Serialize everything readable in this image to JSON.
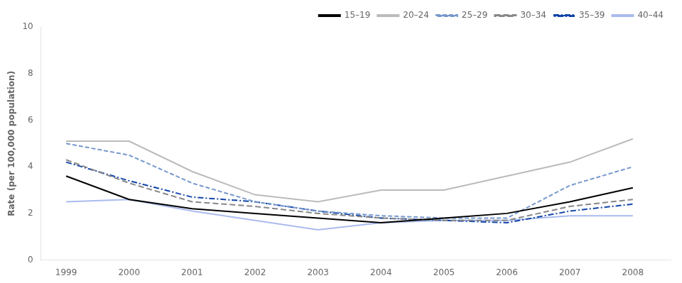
{
  "chart_data": {
    "type": "line",
    "ylabel": "Rate (per 100,000 population)",
    "x": [
      1999,
      2000,
      2001,
      2002,
      2003,
      2004,
      2005,
      2006,
      2007,
      2008
    ],
    "series": [
      {
        "name": "15–19",
        "color": "#000000",
        "line_style": "solid",
        "values": [
          3.6,
          2.6,
          2.2,
          2.0,
          1.8,
          1.6,
          1.8,
          2.0,
          2.5,
          3.1
        ]
      },
      {
        "name": "20–24",
        "color": "#bbbbbb",
        "line_style": "solid",
        "values": [
          5.1,
          5.1,
          3.8,
          2.8,
          2.5,
          3.0,
          3.0,
          3.6,
          4.2,
          5.2
        ]
      },
      {
        "name": "25–29",
        "color": "#7799cc",
        "line_style": "dashed",
        "values": [
          5.0,
          4.5,
          3.3,
          2.5,
          2.1,
          1.9,
          1.8,
          1.8,
          3.2,
          4.0
        ]
      },
      {
        "name": "30–34",
        "color": "#888888",
        "line_style": "long_dashed",
        "values": [
          4.3,
          3.3,
          2.5,
          2.3,
          2.0,
          1.8,
          1.7,
          1.7,
          2.3,
          2.6
        ]
      },
      {
        "name": "35–39",
        "color": "#1144aa",
        "line_style": "dash_dot",
        "values": [
          4.2,
          3.4,
          2.7,
          2.5,
          2.1,
          1.8,
          1.7,
          1.6,
          2.1,
          2.4
        ]
      },
      {
        "name": "40–44",
        "color": "#aabbee",
        "line_style": "solid",
        "values": [
          2.5,
          2.6,
          2.1,
          1.7,
          1.3,
          1.6,
          1.7,
          1.7,
          1.9,
          1.9
        ]
      }
    ],
    "xlim": [
      1998.6,
      2008.6
    ],
    "xticks": [
      1999,
      2000,
      2001,
      2002,
      2003,
      2004,
      2005,
      2006,
      2007,
      2008
    ],
    "ylim": [
      0,
      10
    ],
    "yticks": [
      0,
      2,
      4,
      6,
      8,
      10
    ],
    "grid": false,
    "legend": "upper right"
  }
}
